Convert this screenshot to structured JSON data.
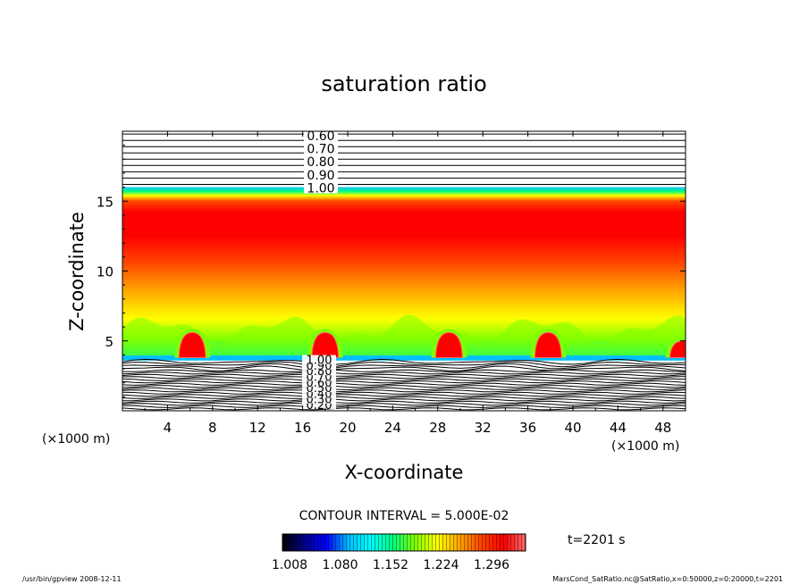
{
  "chart_data": {
    "type": "heatmap",
    "title": "saturation ratio",
    "xlabel": "X-coordinate",
    "ylabel": "Z-coordinate",
    "x_unit_left": "(×1000 m)",
    "x_unit_right": "(×1000 m)",
    "xlim": [
      0,
      50
    ],
    "ylim": [
      0,
      20
    ],
    "x_ticks": [
      4,
      8,
      12,
      16,
      20,
      24,
      28,
      32,
      36,
      40,
      44,
      48
    ],
    "y_ticks": [
      5,
      10,
      15
    ],
    "contour_labels_upper": [
      "0.60",
      "0.70",
      "0.80",
      "0.90",
      "1.00"
    ],
    "contour_labels_lower": [
      "0.20",
      "0.30",
      "0.40",
      "0.50",
      "0.60",
      "0.70",
      "0.80",
      "0.90",
      "1.00"
    ],
    "contour_interval_text": "CONTOUR INTERVAL = 5.000E-02",
    "time_text": "t=2201 s",
    "colorbar_ticks": [
      "1.008",
      "1.080",
      "1.152",
      "1.224",
      "1.296"
    ],
    "colorbar_range": [
      1.008,
      1.32
    ],
    "fill_threshold": 1.0,
    "saturated_layer_z": [
      3.6,
      16.0
    ],
    "max_ratio_z": 12.5,
    "cells_x": [
      6.2,
      18.0,
      29.0,
      37.8,
      49.8
    ],
    "cells_top_z": [
      5.6,
      5.6,
      5.6,
      5.6,
      5.0
    ],
    "colors": [
      "#000000",
      "#00008b",
      "#0000ff",
      "#00bfff",
      "#00ffff",
      "#00ff7f",
      "#7fff00",
      "#ffff00",
      "#ffa500",
      "#ff4500",
      "#ff0000",
      "#ff6a6a"
    ]
  },
  "footer": {
    "left": "/usr/bin/gpview   2008-12-11",
    "right": "MarsCond_SatRatio.nc@SatRatio,x=0:50000,z=0:20000,t=2201"
  }
}
